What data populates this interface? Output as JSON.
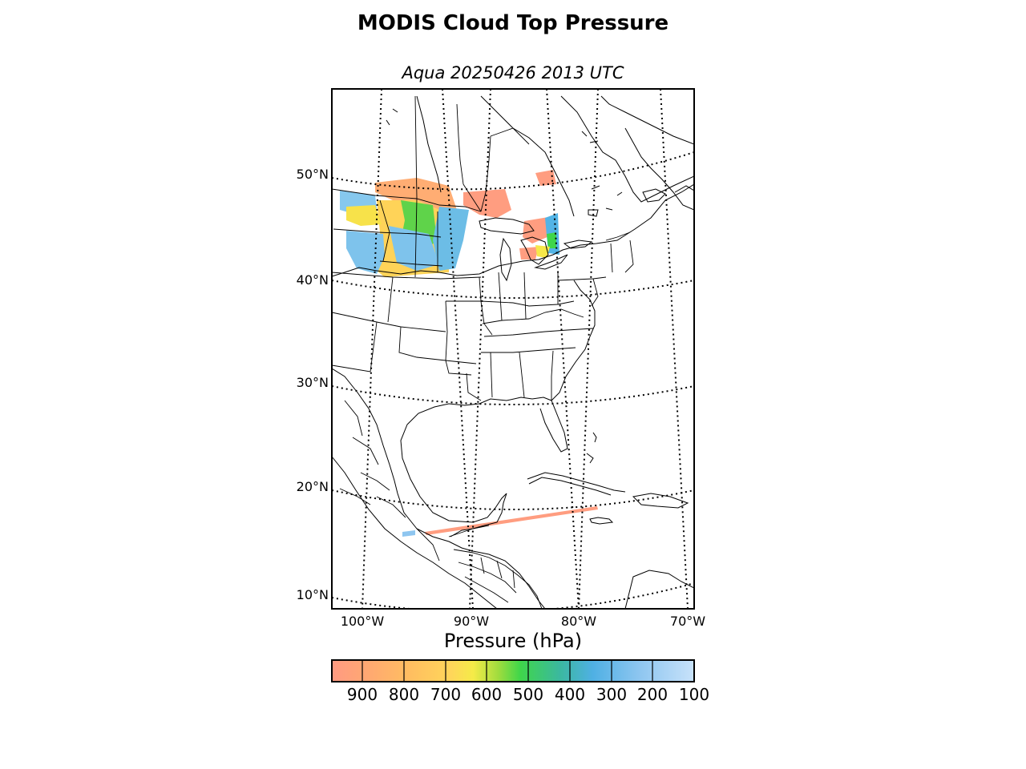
{
  "title": "MODIS Cloud Top Pressure",
  "subtitle": "Aqua 20250426 2013 UTC",
  "map": {
    "projection": "lambert-conformal",
    "lat_labels": [
      "50°N",
      "40°N",
      "30°N",
      "20°N",
      "10°N"
    ],
    "lon_labels": [
      "100°W",
      "90°W",
      "80°W",
      "70°W"
    ],
    "gridline_style": "dotted",
    "features": [
      "coastlines",
      "country-borders",
      "us-state-borders",
      "cloud-top-pressure-swath"
    ]
  },
  "colorbar": {
    "label": "Pressure (hPa)",
    "ticks": [
      "900",
      "800",
      "700",
      "600",
      "500",
      "400",
      "300",
      "200",
      "100"
    ],
    "range": [
      1000,
      100
    ],
    "colors": [
      "#ff9c80",
      "#ffb06a",
      "#ffcb5a",
      "#f6e84a",
      "#9fdc3e",
      "#3fd64a",
      "#3bb4a8",
      "#52b4e6",
      "#8ec6f0",
      "#c8e0fa"
    ]
  }
}
